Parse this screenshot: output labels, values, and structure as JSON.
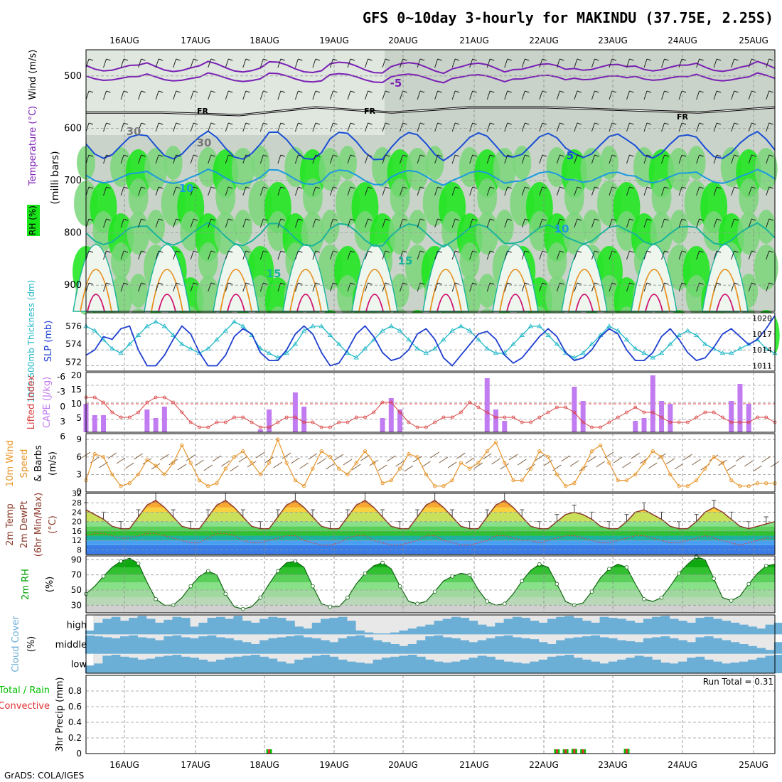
{
  "title": "GFS 0~10day 3-hourly for MAKINDU (37.75E, 2.25S)",
  "footer": "GrADS: COLA/IGES",
  "dates": [
    "16AUG",
    "17AUG",
    "18AUG",
    "19AUG",
    "20AUG",
    "21AUG",
    "22AUG",
    "23AUG",
    "24AUG",
    "25AUG"
  ],
  "panels": {
    "upper_air": {
      "labels": [
        "RH (%)",
        "Temperature (°C)",
        "Wind (m/s)",
        "(milli bars)"
      ],
      "y_ticks": [
        500,
        600,
        700,
        800,
        900
      ],
      "contour_labels": [
        "FR",
        "FR",
        "FR",
        "-5",
        "5",
        "10",
        "10",
        "15",
        "15",
        "30",
        "30"
      ]
    },
    "thickness_slp": {
      "labels": [
        "1000-500mb Thickness (dm)",
        "SLP (mb)"
      ],
      "left_ticks": [
        572,
        574,
        576
      ],
      "right_ticks": [
        1011,
        1014,
        1017,
        1020
      ]
    },
    "cape_li": {
      "labels": [
        "Lifted Index",
        "CAPE (J/kg)"
      ],
      "left_ticks": [
        "-6",
        "-3",
        "0",
        "3",
        "6"
      ],
      "right_ticks": [
        5,
        10,
        15,
        20
      ]
    },
    "wind10m": {
      "labels": [
        "10m Wind",
        "Speed",
        "& Barbs",
        "(m/s)"
      ],
      "y_ticks": [
        0,
        3,
        6,
        9
      ]
    },
    "temp2m": {
      "labels": [
        "2m Temp",
        "2m DewPt",
        "(6hr Min/Max)",
        "(°C)"
      ],
      "y_ticks": [
        8,
        12,
        16,
        20,
        24,
        28,
        32
      ]
    },
    "rh2m": {
      "labels": [
        "2m RH",
        "(%)"
      ],
      "y_ticks": [
        30,
        50,
        70,
        90
      ]
    },
    "cloud": {
      "labels": [
        "Cloud Cover",
        "(%)"
      ],
      "levels": [
        "high",
        "middle",
        "low"
      ]
    },
    "precip": {
      "labels": [
        "Total / Rain",
        "Convective",
        "3hr Precip (mm)"
      ],
      "y_ticks": [
        "0",
        "0.2",
        "0.4",
        "0.6",
        "0.8"
      ],
      "run_total": "Run Total = 0.31"
    }
  },
  "colors": {
    "slp": "#1f3fd0",
    "thickness": "#20b8c8",
    "cape": "#c27cf2",
    "lifted_index": "#d94040",
    "wind_speed": "#e8952a",
    "temp": "#8b3a2a",
    "dewpt": "#c84a4a",
    "rh": "#00a000",
    "cloud": "#6baed6",
    "rain": "#00c000",
    "convective": "#e03030"
  },
  "chart_data": [
    {
      "type": "heatmap",
      "name": "upper_air",
      "x": "time (3-hourly, 15AUG 12Z to 25AUG 06Z)",
      "ylabel": "(milli bars)",
      "ylim": [
        950,
        450
      ],
      "freezing_level_mb": [
        570,
        570,
        575,
        560,
        570,
        560,
        560,
        565,
        570,
        560
      ]
    },
    {
      "type": "line",
      "name": "thickness_slp",
      "series": [
        {
          "name": "SLP",
          "axis": "right",
          "ylim": [
            1010,
            1021
          ],
          "values": [
            1013,
            1014,
            1016.5,
            1016,
            1018,
            1018.5,
            1014,
            1011,
            1011,
            1013,
            1016,
            1018.5,
            1017,
            1013.5,
            1011,
            1011,
            1013,
            1016.5,
            1018,
            1017,
            1013.5,
            1012,
            1012,
            1014,
            1017,
            1018.5,
            1017,
            1013.5,
            1011,
            1011.5,
            1014,
            1017,
            1018.5,
            1016.5,
            1013.5,
            1012,
            1012.5,
            1014,
            1017,
            1018,
            1016,
            1012.5,
            1011,
            1013,
            1015,
            1017,
            1017.5,
            1016,
            1013,
            1011.5,
            1012.5,
            1014.5,
            1016.5,
            1018,
            1016.5,
            1013.5,
            1012,
            1012.5,
            1014,
            1016.5,
            1018,
            1017,
            1014,
            1012,
            1012,
            1013.5,
            1016.5,
            1018,
            1016,
            1013.5,
            1012,
            1012.5,
            1014.5,
            1017,
            1018,
            1016.5,
            1015,
            1016,
            1018,
            1020.5
          ]
        },
        {
          "name": "Thickness",
          "axis": "left",
          "ylim": [
            571,
            577.5
          ],
          "values": [
            576,
            575.5,
            574.5,
            573.5,
            573,
            574,
            575,
            576,
            576.5,
            576,
            575,
            574,
            573.5,
            573,
            573.5,
            574.5,
            575.5,
            576.5,
            576,
            575,
            573.5,
            573,
            572.5,
            573,
            574,
            575.5,
            576,
            576,
            575,
            574,
            573,
            572.5,
            573.5,
            574.5,
            575.5,
            576,
            575.5,
            574.5,
            573.5,
            573,
            573.5,
            574.5,
            575.5,
            576,
            575.5,
            574.5,
            573.5,
            573,
            573,
            574,
            575,
            576,
            576,
            575,
            574,
            573,
            572.5,
            573,
            574,
            575,
            576,
            575.5,
            574.5,
            573.5,
            573,
            572.5,
            573,
            574,
            575,
            575.5,
            575,
            574,
            573.5,
            573,
            573,
            573.5,
            574,
            574.5,
            573.5,
            573
          ]
        }
      ]
    },
    {
      "type": "bar",
      "name": "cape_li",
      "series": [
        {
          "name": "CAPE",
          "axis": "right",
          "ylim": [
            0,
            21
          ],
          "values": [
            10,
            6,
            6,
            0,
            0,
            0,
            0,
            8,
            5,
            9,
            0,
            0,
            0,
            0,
            0,
            0,
            0,
            0,
            0,
            0,
            1,
            8,
            0,
            0,
            14,
            9,
            0,
            0,
            0,
            0,
            0,
            0,
            0,
            0,
            5,
            12,
            8,
            0,
            0,
            0,
            0,
            0,
            0,
            0,
            0,
            0,
            19,
            8,
            4,
            0,
            0,
            0,
            0,
            0,
            0,
            0,
            16,
            11,
            0,
            0,
            0,
            0,
            0,
            4,
            5,
            20,
            11,
            10,
            0,
            0,
            0,
            0,
            0,
            0,
            11,
            17,
            10,
            0,
            0,
            0
          ]
        },
        {
          "name": "Lifted Index",
          "axis": "left",
          "ylim": [
            6,
            -6
          ],
          "values": [
            -1,
            -1,
            0,
            2,
            3,
            3,
            2,
            0,
            -1,
            -1,
            0,
            2,
            4,
            5,
            5,
            4,
            4,
            3,
            3,
            4,
            5,
            5,
            4,
            3,
            3,
            4,
            4,
            5,
            5,
            4,
            4,
            3,
            3,
            2,
            0,
            0,
            2,
            4,
            5,
            5,
            4,
            3,
            3,
            2,
            0,
            1,
            2,
            3,
            3,
            3,
            4,
            4,
            3,
            2,
            1,
            1,
            2,
            4,
            5,
            5,
            4,
            3,
            2,
            1,
            2,
            2,
            3,
            4,
            4,
            4,
            3,
            2,
            2,
            3,
            4,
            4,
            4,
            3,
            3,
            4
          ]
        }
      ]
    },
    {
      "type": "line",
      "name": "wind10m",
      "ylim": [
        0,
        10
      ],
      "values": [
        2,
        6.5,
        6,
        3,
        1,
        1.5,
        3,
        5.5,
        4.5,
        3,
        5,
        8,
        5,
        2,
        1,
        1.5,
        4,
        6,
        7,
        5,
        3,
        5,
        9,
        5,
        2,
        1,
        4,
        7,
        6,
        4,
        3,
        5,
        7,
        5,
        1.5,
        2,
        4,
        6.5,
        6,
        3,
        1,
        1,
        2,
        5,
        4,
        5,
        7,
        8.5,
        5,
        2,
        2,
        4,
        7,
        6,
        3,
        1,
        1.5,
        4,
        7,
        8,
        5,
        2,
        2,
        3,
        5,
        7,
        6,
        3,
        1,
        1,
        2,
        4,
        6,
        5,
        2,
        1,
        1,
        1.5,
        1.5,
        1.5
      ]
    },
    {
      "type": "area",
      "name": "temp2m",
      "ylim": [
        6,
        32
      ],
      "series": [
        {
          "name": "2m Temp",
          "values": [
            25,
            23,
            21,
            18,
            17,
            17,
            22,
            27,
            29,
            26,
            22,
            18,
            17,
            17,
            22,
            27,
            29,
            26,
            22,
            18,
            17,
            17,
            22,
            27,
            29,
            26,
            22,
            18,
            17,
            17,
            22,
            27,
            29,
            26,
            22,
            18,
            17,
            17,
            22,
            27,
            29,
            26,
            22,
            18,
            17,
            17,
            22,
            27,
            29,
            26,
            22,
            18,
            17,
            17,
            20,
            23,
            24,
            23,
            21,
            18,
            17,
            17,
            20,
            24,
            25,
            23,
            21,
            18,
            17,
            17,
            20,
            24,
            26,
            24,
            21,
            18,
            17,
            18,
            19,
            20
          ]
        },
        {
          "name": "2m DewPt",
          "values": [
            14,
            15,
            15,
            14,
            13,
            13,
            14,
            15,
            15,
            14,
            13,
            12,
            11,
            11,
            13,
            15,
            15,
            14,
            12,
            11,
            11,
            12,
            13,
            14,
            14,
            12,
            11,
            10,
            10,
            11,
            13,
            14,
            14,
            12,
            11,
            10,
            10,
            11,
            12,
            14,
            14,
            12,
            11,
            10,
            10,
            11,
            12,
            14,
            14,
            13,
            12,
            12,
            11,
            12,
            13,
            14,
            14,
            13,
            12,
            11,
            11,
            12,
            13,
            14,
            14,
            13,
            12,
            11,
            11,
            12,
            13,
            14,
            13,
            12,
            11,
            10,
            11,
            12,
            13,
            13
          ]
        }
      ]
    },
    {
      "type": "area",
      "name": "rh2m",
      "ylim": [
        20,
        95
      ],
      "values": [
        45,
        55,
        68,
        80,
        88,
        92,
        85,
        60,
        38,
        30,
        30,
        40,
        55,
        68,
        75,
        70,
        45,
        28,
        25,
        28,
        40,
        58,
        75,
        86,
        88,
        80,
        55,
        32,
        28,
        28,
        40,
        58,
        72,
        82,
        86,
        78,
        55,
        35,
        32,
        35,
        48,
        62,
        68,
        72,
        70,
        50,
        35,
        30,
        32,
        45,
        62,
        76,
        84,
        80,
        58,
        35,
        30,
        33,
        48,
        66,
        78,
        84,
        80,
        58,
        38,
        35,
        40,
        55,
        72,
        84,
        94,
        90,
        65,
        40,
        36,
        42,
        58,
        72,
        82,
        84
      ]
    },
    {
      "type": "bar",
      "name": "cloud",
      "series": [
        {
          "name": "high",
          "values": [
            20,
            60,
            80,
            90,
            70,
            85,
            95,
            80,
            60,
            75,
            90,
            85,
            40,
            60,
            85,
            90,
            80,
            95,
            70,
            60,
            80,
            90,
            85,
            70,
            40,
            30,
            60,
            80,
            85,
            90,
            70,
            20,
            10,
            5,
            5,
            10,
            20,
            30,
            40,
            50,
            70,
            80,
            90,
            85,
            70,
            50,
            40,
            60,
            80,
            90,
            85,
            70,
            60,
            80,
            90,
            95,
            85,
            70,
            60,
            90,
            85,
            80,
            70,
            60,
            80,
            90,
            95,
            80,
            70,
            60,
            85,
            90,
            80,
            70,
            60,
            50,
            40,
            30,
            50,
            60
          ]
        },
        {
          "name": "middle",
          "values": [
            95,
            90,
            85,
            80,
            90,
            95,
            85,
            80,
            70,
            90,
            95,
            85,
            80,
            90,
            95,
            85,
            80,
            70,
            60,
            50,
            70,
            80,
            85,
            90,
            95,
            85,
            80,
            70,
            60,
            80,
            90,
            95,
            85,
            70,
            60,
            50,
            40,
            50,
            70,
            90,
            95,
            85,
            80,
            70,
            60,
            70,
            80,
            90,
            95,
            85,
            80,
            75,
            60,
            50,
            70,
            80,
            85,
            90,
            95,
            85,
            80,
            70,
            65,
            60,
            80,
            85,
            90,
            80,
            70,
            60,
            85,
            90,
            80,
            70,
            60,
            50,
            40,
            30,
            20,
            60
          ]
        },
        {
          "name": "low",
          "values": [
            40,
            50,
            90,
            95,
            85,
            80,
            70,
            75,
            85,
            90,
            95,
            85,
            80,
            70,
            60,
            70,
            80,
            85,
            90,
            95,
            85,
            75,
            60,
            50,
            70,
            80,
            90,
            95,
            85,
            70,
            60,
            55,
            50,
            70,
            80,
            85,
            90,
            95,
            85,
            70,
            60,
            55,
            60,
            70,
            80,
            90,
            85,
            70,
            60,
            55,
            50,
            60,
            70,
            85,
            90,
            95,
            80,
            70,
            60,
            50,
            60,
            70,
            80,
            90,
            85,
            70,
            55,
            50,
            60,
            80,
            85,
            70,
            60,
            50,
            55,
            60,
            70,
            80,
            90,
            95
          ]
        }
      ]
    },
    {
      "type": "bar",
      "name": "precip",
      "ylim": [
        0,
        1
      ],
      "run_total": 0.31,
      "bars": [
        {
          "index": 21,
          "total": 0.04,
          "convective": 0.02
        },
        {
          "index": 54,
          "total": 0.05,
          "convective": 0.03
        },
        {
          "index": 55,
          "total": 0.05,
          "convective": 0.02
        },
        {
          "index": 56,
          "total": 0.06,
          "convective": 0.03
        },
        {
          "index": 57,
          "total": 0.05,
          "convective": 0.02
        },
        {
          "index": 62,
          "total": 0.06,
          "convective": 0.03
        }
      ]
    }
  ]
}
